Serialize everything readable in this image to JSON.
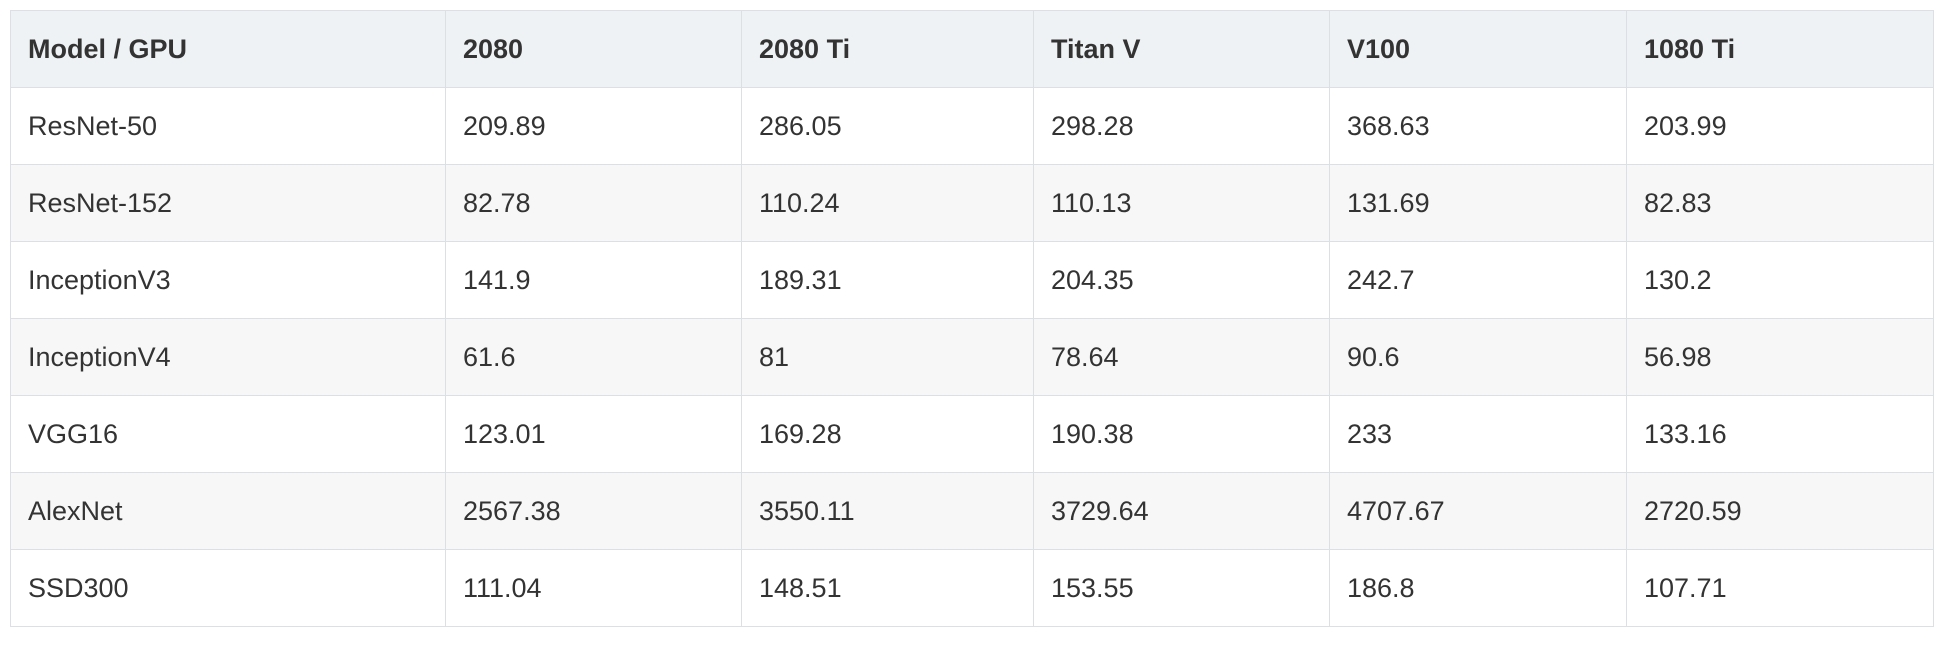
{
  "table": {
    "headers": [
      "Model / GPU",
      "2080",
      "2080 Ti",
      "Titan V",
      "V100",
      "1080 Ti"
    ],
    "rows": [
      [
        "ResNet-50",
        "209.89",
        "286.05",
        "298.28",
        "368.63",
        "203.99"
      ],
      [
        "ResNet-152",
        "82.78",
        "110.24",
        "110.13",
        "131.69",
        "82.83"
      ],
      [
        "InceptionV3",
        "141.9",
        "189.31",
        "204.35",
        "242.7",
        "130.2"
      ],
      [
        "InceptionV4",
        "61.6",
        "81",
        "78.64",
        "90.6",
        "56.98"
      ],
      [
        "VGG16",
        "123.01",
        "169.28",
        "190.38",
        "233",
        "133.16"
      ],
      [
        "AlexNet",
        "2567.38",
        "3550.11",
        "3729.64",
        "4707.67",
        "2720.59"
      ],
      [
        "SSD300",
        "111.04",
        "148.51",
        "153.55",
        "186.8",
        "107.71"
      ]
    ]
  },
  "colors": {
    "header_bg": "#eff2f5",
    "row_alt_bg": "#f7f7f7",
    "border": "#dcdfe3",
    "text": "#333333"
  }
}
